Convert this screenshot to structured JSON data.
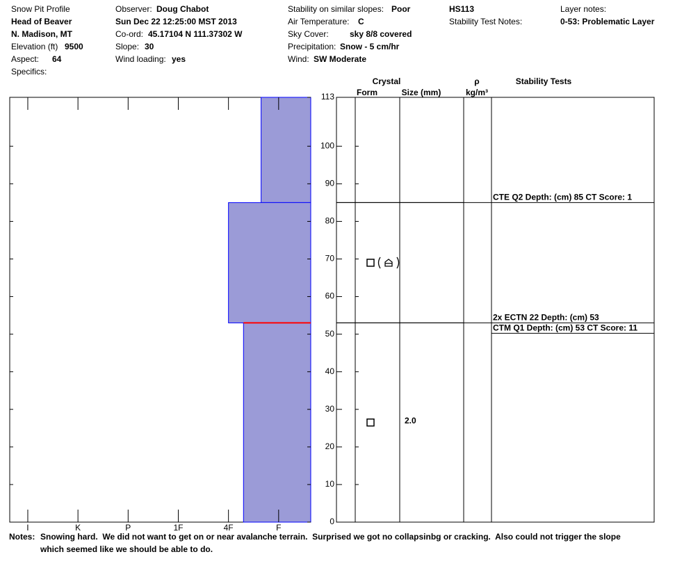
{
  "header": {
    "title": "Snow Pit Profile",
    "location": "Head of Beaver",
    "region": "N. Madison, MT",
    "date": "Sun Dec 22 12:25:00 MST 2013",
    "hs": "HS113",
    "fields": [
      {
        "label": "Elevation (ft)",
        "value": "9500"
      },
      {
        "label": "Aspect:",
        "value": "64"
      },
      {
        "label": "Specifics:"
      },
      {
        "label": "Observer:",
        "value": "Doug Chabot"
      },
      {
        "label": "Co-ord:",
        "value": "45.17104 N 111.37302 W"
      },
      {
        "label": "Slope:",
        "value": "30"
      },
      {
        "label": "Wind loading:",
        "value": "yes"
      },
      {
        "label": "Stability on similar slopes:",
        "value": "Poor"
      },
      {
        "label": "Air Temperature:",
        "value": "C"
      },
      {
        "label": "Sky Cover:",
        "value": "sky 8/8 covered"
      },
      {
        "label": "Precipitation:",
        "value": "Snow - 5 cm/hr"
      },
      {
        "label": "Wind:",
        "value": "SW Moderate"
      },
      {
        "label": "Stability Test Notes:"
      },
      {
        "label": "Layer notes:",
        "value": "0-53: Problematic Layer"
      }
    ]
  },
  "profile": {
    "ylim": [
      0,
      113
    ],
    "yticks": [
      0,
      10,
      20,
      30,
      40,
      50,
      60,
      70,
      80,
      90,
      100,
      113
    ],
    "xlim": [
      6.36,
      0.36
    ],
    "xticks": [
      {
        "value": 6,
        "label": "I"
      },
      {
        "value": 5,
        "label": "K"
      },
      {
        "value": 4,
        "label": "P"
      },
      {
        "value": 3,
        "label": "1F"
      },
      {
        "value": 2,
        "label": "4F"
      },
      {
        "value": 1,
        "label": "F"
      }
    ],
    "layers": [
      {
        "top": 113,
        "bottom": 85,
        "hardness": 1.35
      },
      {
        "top": 85,
        "bottom": 53,
        "hardness": 2
      },
      {
        "top": 53,
        "bottom": 0,
        "hardness": 1.7
      }
    ],
    "weak_interface": 53,
    "headers": {
      "crystal": "Crystal",
      "form": "Form",
      "size": "Size (mm)",
      "density": "ρ",
      "density_unit": "kg/m³",
      "tests": "Stability Tests"
    },
    "grains": [
      {
        "depth": 69
      },
      {
        "depth": 26.5,
        "size": "2.0"
      }
    ],
    "tests": [
      {
        "text": "CTE Q2 Depth: (cm) 85 CT Score: 1",
        "depth": 85
      },
      {
        "text": "2x ECTN 22  Depth: (cm) 53",
        "depth": 53
      },
      {
        "text": "CTM Q1 Depth: (cm) 53 CT Score: 11",
        "depth": 53
      }
    ]
  },
  "notes": {
    "label": "Notes:",
    "text": "Snowing hard.  We did not want to get on or near avalanche terrain.  Surprised we got no collapsinbg or cracking.  Also could not trigger the slope which seemed like we should be able to do."
  }
}
